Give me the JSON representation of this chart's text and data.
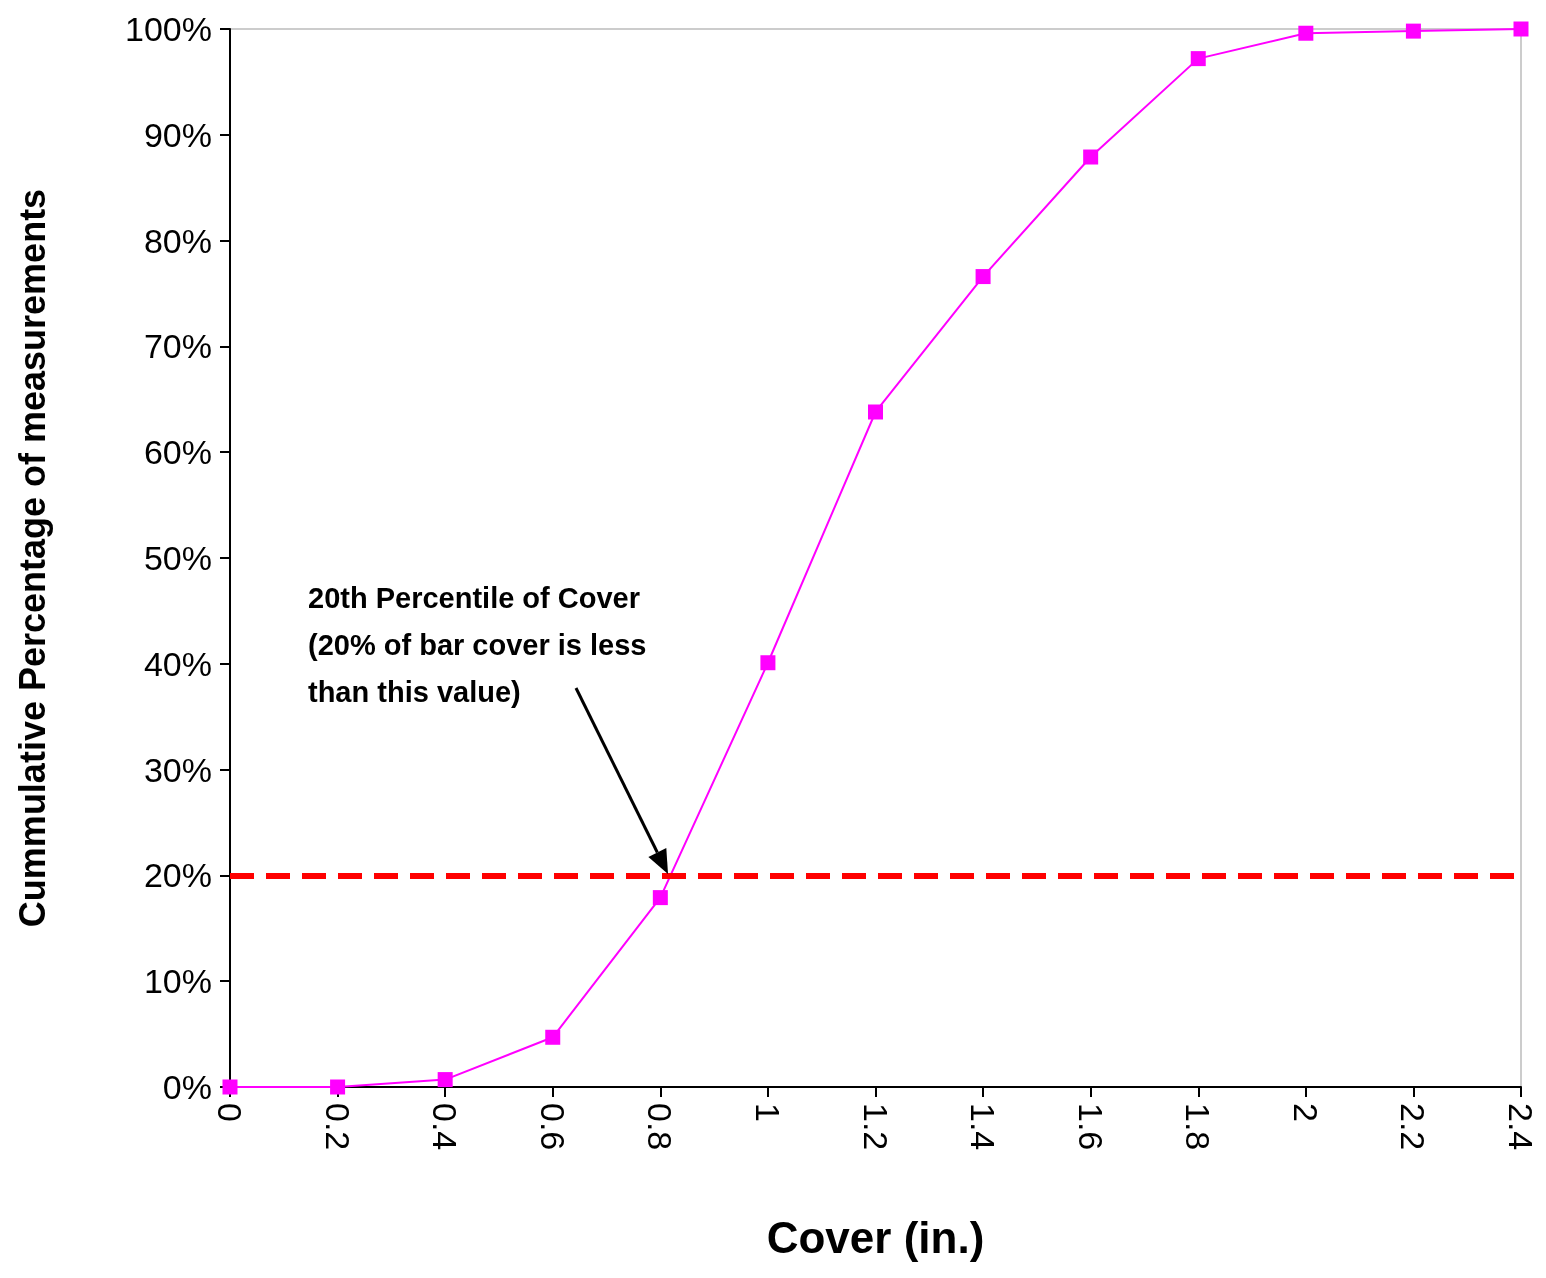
{
  "chart_data": {
    "type": "line",
    "xlabel": "Cover (in.)",
    "ylabel": "Cummulative Percentage of measurements",
    "x": [
      0,
      0.2,
      0.4,
      0.6,
      0.8,
      1,
      1.2,
      1.4,
      1.6,
      1.8,
      2,
      2.2,
      2.4
    ],
    "series": [
      {
        "color": "#ff00ff",
        "values": [
          0,
          0,
          0.7,
          4.7,
          17.9,
          40.1,
          63.8,
          76.6,
          87.9,
          97.2,
          99.6,
          99.8,
          100
        ]
      }
    ],
    "xlim": [
      0,
      2.4
    ],
    "xticks": [
      0,
      0.2,
      0.4,
      0.6,
      0.8,
      1,
      1.2,
      1.4,
      1.6,
      1.8,
      2,
      2.2,
      2.4
    ],
    "ylim": [
      0,
      100
    ],
    "yticks": [
      {
        "value": 0,
        "label": "0%"
      },
      {
        "value": 10,
        "label": "10%"
      },
      {
        "value": 20,
        "label": "20%"
      },
      {
        "value": 30,
        "label": "30%"
      },
      {
        "value": 40,
        "label": "40%"
      },
      {
        "value": 50,
        "label": "50%"
      },
      {
        "value": 60,
        "label": "60%"
      },
      {
        "value": 70,
        "label": "70%"
      },
      {
        "value": 80,
        "label": "80%"
      },
      {
        "value": 90,
        "label": "90%"
      },
      {
        "value": 100,
        "label": "100%"
      }
    ],
    "ref_lines": [
      {
        "axis": "y",
        "value": 20,
        "color": "#ff0000",
        "line_style": "dashed"
      }
    ],
    "annotations": [
      "20th Percentile of Cover\n(20% of bar cover is less\nthan this value)"
    ],
    "marker": "square",
    "line_style": "solid"
  }
}
